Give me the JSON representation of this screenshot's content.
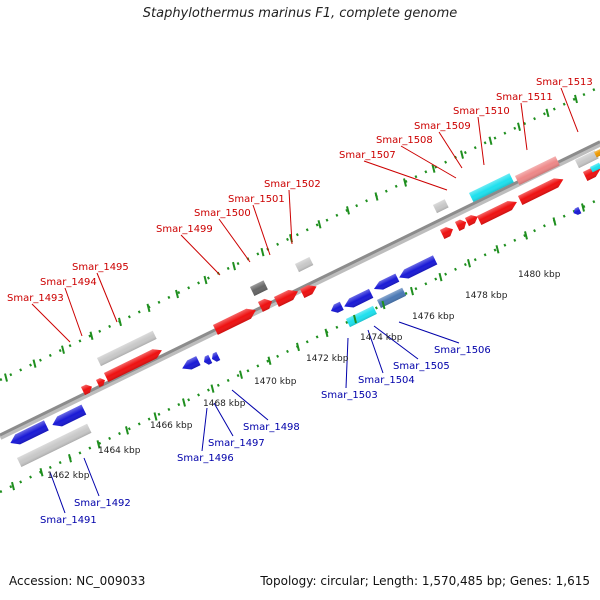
{
  "title": "Staphylothermus marinus F1, complete genome",
  "accession": "Accession: NC_009033",
  "summary": "Topology: circular; Length: 1,570,485 bp; Genes: 1,615",
  "colors": {
    "backbone": "#8c8c8c",
    "tick": "#1f8f1f",
    "upper_label": "#cc0000",
    "lower_label": "#0000aa",
    "red": "#ee1111",
    "blue": "#1a1ad6",
    "gray": "#c8c8c8",
    "darkgray": "#666666",
    "cyan": "#1ee0ee",
    "pink": "#ee8888",
    "steelblue": "#4a78b4",
    "orange": "#ee9900"
  },
  "scale_labels": [
    "1462 kbp",
    "1464 kbp",
    "1466 kbp",
    "1468 kbp",
    "1470 kbp",
    "1472 kbp",
    "1474 kbp",
    "1476 kbp",
    "1478 kbp",
    "1480 kbp"
  ],
  "upper_labels": [
    "Smar_1493",
    "Smar_1494",
    "Smar_1495",
    "Smar_1499",
    "Smar_1500",
    "Smar_1501",
    "Smar_1502",
    "Smar_1507",
    "Smar_1508",
    "Smar_1509",
    "Smar_1510",
    "Smar_1511",
    "Smar_1513"
  ],
  "lower_labels": [
    "Smar_1491",
    "Smar_1492",
    "Smar_1496",
    "Smar_1497",
    "Smar_1498",
    "Smar_1503",
    "Smar_1504",
    "Smar_1505",
    "Smar_1506"
  ]
}
